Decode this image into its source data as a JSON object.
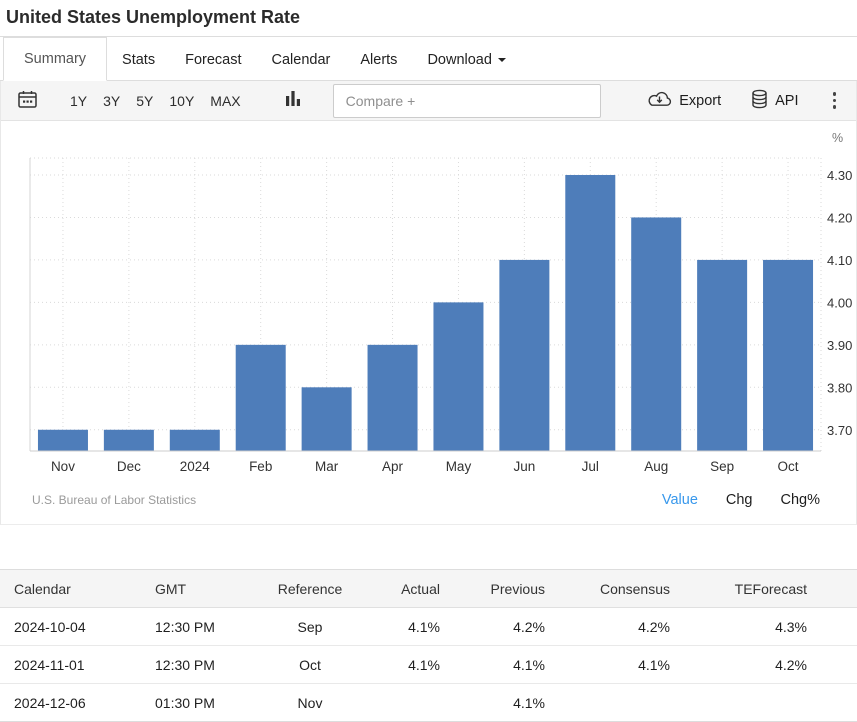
{
  "page": {
    "title": "United States Unemployment Rate"
  },
  "tabs": [
    {
      "label": "Summary",
      "active": true
    },
    {
      "label": "Stats"
    },
    {
      "label": "Forecast"
    },
    {
      "label": "Calendar"
    },
    {
      "label": "Alerts"
    },
    {
      "label": "Download",
      "dropdown": true
    }
  ],
  "toolbar": {
    "calendar_icon": "calendar-icon",
    "ranges": [
      "1Y",
      "3Y",
      "5Y",
      "10Y",
      "MAX"
    ],
    "chart_type_icon": "bar-chart-icon",
    "compare_placeholder": "Compare +",
    "export_label": "Export",
    "api_label": "API",
    "more_icon": "kebab-menu-icon"
  },
  "chart_data": {
    "type": "bar",
    "title": "United States Unemployment Rate",
    "categories": [
      "Nov",
      "Dec",
      "2024",
      "Feb",
      "Mar",
      "Apr",
      "May",
      "Jun",
      "Jul",
      "Aug",
      "Sep",
      "Oct"
    ],
    "values": [
      3.7,
      3.7,
      3.7,
      3.9,
      3.8,
      3.9,
      4.0,
      4.1,
      4.3,
      4.2,
      4.1,
      4.1
    ],
    "unit": "%",
    "ylabel": "%",
    "yticks": [
      3.7,
      3.8,
      3.9,
      4.0,
      4.1,
      4.2,
      4.3
    ],
    "ylim": [
      3.65,
      4.34
    ],
    "bar_color": "#4e7dba",
    "grid": true,
    "legend_position": "none",
    "source": "U.S. Bureau of Labor Statistics",
    "modes": [
      {
        "label": "Value",
        "active": true
      },
      {
        "label": "Chg",
        "active": false
      },
      {
        "label": "Chg%",
        "active": false
      }
    ],
    "active_mode_color": "#3898ec"
  },
  "table": {
    "headers": [
      "Calendar",
      "GMT",
      "Reference",
      "Actual",
      "Previous",
      "Consensus",
      "TEForecast"
    ],
    "aligns": [
      "l",
      "l",
      "c",
      "r",
      "r",
      "r",
      "r"
    ],
    "rows": [
      [
        "2024-10-04",
        "12:30 PM",
        "Sep",
        "4.1%",
        "4.2%",
        "4.2%",
        "4.3%"
      ],
      [
        "2024-11-01",
        "12:30 PM",
        "Oct",
        "4.1%",
        "4.1%",
        "4.1%",
        "4.2%"
      ],
      [
        "2024-12-06",
        "01:30 PM",
        "Nov",
        "",
        "4.1%",
        "",
        ""
      ]
    ]
  }
}
